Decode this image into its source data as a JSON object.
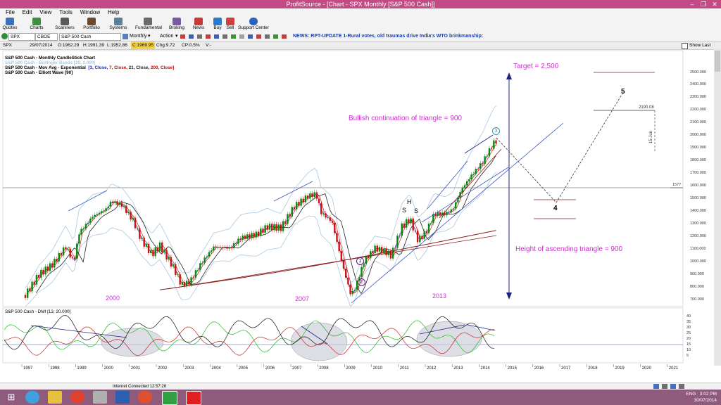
{
  "window": {
    "title": "ProfitSource - [Chart - SPX Monthly [S&P 500 Cash]]",
    "minimize": "–",
    "restore": "❐",
    "close": "✕"
  },
  "menu": [
    "File",
    "Edit",
    "View",
    "Tools",
    "Window",
    "Help"
  ],
  "toolbar": [
    {
      "label": "Quotes",
      "icon": "quotes-icon",
      "color": "#3b6fbf"
    },
    {
      "label": "Charts",
      "icon": "charts-icon",
      "color": "#3f8f3f"
    },
    {
      "label": "Scanners",
      "icon": "scanners-icon",
      "color": "#5a5a5a"
    },
    {
      "label": "Portfolio",
      "icon": "portfolio-icon",
      "color": "#6b4a2a"
    },
    {
      "label": "Systems",
      "icon": "systems-icon",
      "color": "#5a7f9a"
    },
    {
      "label": "Fundamental",
      "icon": "fundamental-icon",
      "color": "#6a6a6a"
    },
    {
      "label": "Broking",
      "icon": "broking-icon",
      "color": "#7a5aa0"
    },
    {
      "label": "News",
      "icon": "news-icon",
      "color": "#c83a3a"
    },
    {
      "label": "Buy",
      "icon": "buy-icon",
      "color": "#2c7ad0"
    },
    {
      "label": "Sell",
      "icon": "sell-icon",
      "color": "#d04040"
    },
    {
      "label": "Support Center",
      "icon": "help-icon",
      "color": "#2a62c0"
    }
  ],
  "selector": {
    "symbol": "SPX",
    "exchange": "CBOE",
    "name": "S&P 500 Cash",
    "period": "Monthly",
    "action": "Action",
    "news": "NEWS: RPT-UPDATE 1-Rural votes, old traumas drive India's WTO brinkmanship:"
  },
  "info": {
    "symbol": "SPX",
    "date": "29/07/2014",
    "open": "O:1962.29",
    "high": "H:1991.39",
    "low": "L:1952.86",
    "close": "C:1969.95",
    "change": "Chg:9.72",
    "change_pct": "CP:0.5%",
    "volume": "V:-",
    "show_last": "Show Last"
  },
  "legend": [
    {
      "text": "S&P 500 Cash - Monthly CandleStick Chart",
      "color": "#000000"
    },
    {
      "text": "S&P 500 Cash - Bollinger Bands [20, 2.000]",
      "color": "#a8c8e0"
    },
    {
      "text": "S&P 500 Cash - Mov Avg - Exponential",
      "color": "#000000"
    },
    {
      "text": "S&P 500 Cash - Elliott Wave [90]",
      "color": "#000000"
    }
  ],
  "ema_params": [
    {
      "text": "[3, Close,",
      "color": "#2222cc"
    },
    {
      "text": " 7, Close,",
      "color": "#cc0000"
    },
    {
      "text": " 21, Close,",
      "color": "#222222"
    },
    {
      "text": " 200, Close]",
      "color": "#cc0000"
    }
  ],
  "annotations": {
    "target": "Target = 2,500",
    "bullish": "Bullish continuation of triangle = 900",
    "height": "Height of ascending triangle = 900",
    "year_2000": "2000",
    "year_2007": "2007",
    "year_2013": "2013",
    "H": "H",
    "S1": "S",
    "S2": "S",
    "wave4": "4",
    "wave5": "5",
    "wave1": "1",
    "wave2": "2",
    "wave3": "3",
    "price_box": "2190.08",
    "date_box": "15 Jun",
    "last_price": "1577"
  },
  "indicator_title": "S&P 500 Cash - DMI [13, 20.000]",
  "price_axis": [
    "2500.000",
    "2400.000",
    "2300.000",
    "2200.000",
    "2100.000",
    "2000.000",
    "1900.000",
    "1800.000",
    "1700.000",
    "1600.000",
    "1500.000",
    "1400.000",
    "1300.000",
    "1200.000",
    "1100.000",
    "1000.000",
    "900.000",
    "800.000",
    "700.000"
  ],
  "dmi_axis": [
    "40",
    "35",
    "30",
    "25",
    "20",
    "15",
    "10",
    "5"
  ],
  "time_axis": [
    "1997",
    "1998",
    "1999",
    "2000",
    "2001",
    "2002",
    "2003",
    "2004",
    "2005",
    "2006",
    "2007",
    "2008",
    "2009",
    "2010",
    "2011",
    "2012",
    "2013",
    "2014",
    "2015",
    "2016",
    "2017",
    "2018",
    "2019",
    "2020",
    "2021"
  ],
  "status": {
    "connection": "Internet Connected 12:57:26"
  },
  "tray": {
    "lang": "ENG",
    "time": "3:02 PM",
    "date": "30/07/2014"
  },
  "taskbar": [
    {
      "name": "start-icon",
      "color": "#ffffff"
    },
    {
      "name": "ie-icon",
      "color": "#3fa0e0"
    },
    {
      "name": "folder-icon",
      "color": "#e8c040"
    },
    {
      "name": "chrome-icon",
      "color": "#e04030"
    },
    {
      "name": "calculator-icon",
      "color": "#b0b0b0"
    },
    {
      "name": "word-icon",
      "color": "#2b5fb0"
    },
    {
      "name": "network-icon",
      "color": "#e05030"
    },
    {
      "name": "app-icon",
      "color": "#30a040"
    },
    {
      "name": "profitsource-icon",
      "color": "#e02020"
    }
  ]
}
